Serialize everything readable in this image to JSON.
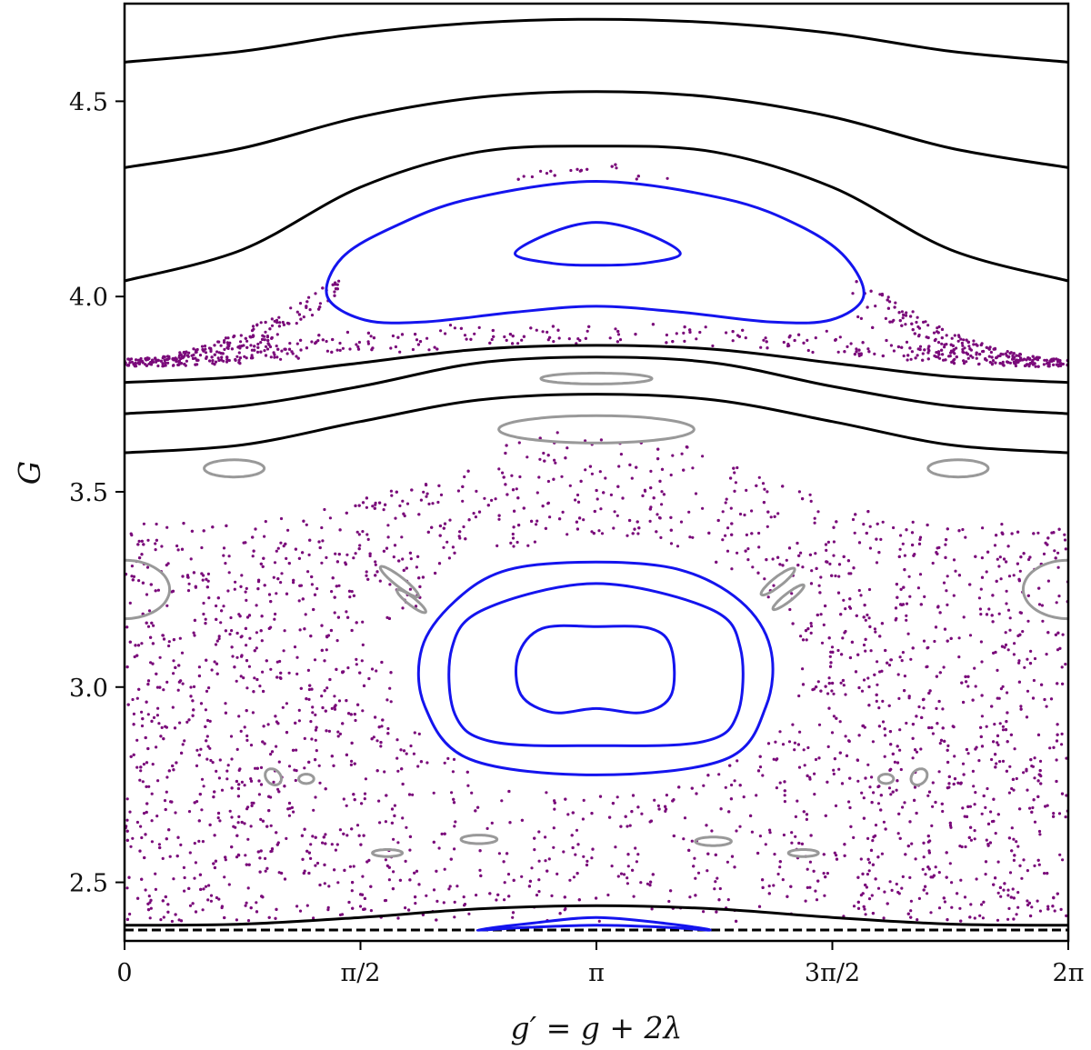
{
  "chart_data": {
    "type": "scatter",
    "title": "",
    "xlabel": "g′ = g + 2λ",
    "ylabel": "G",
    "xlim": [
      0,
      6.283185
    ],
    "ylim": [
      2.35,
      4.75
    ],
    "x_ticks": [
      {
        "value": 0,
        "label": "0"
      },
      {
        "value": 1.570796,
        "label": "π/2"
      },
      {
        "value": 3.141593,
        "label": "π"
      },
      {
        "value": 4.712389,
        "label": "3π/2"
      },
      {
        "value": 6.283185,
        "label": "2π"
      }
    ],
    "y_ticks": [
      {
        "value": 2.5,
        "label": "2.5"
      },
      {
        "value": 3.0,
        "label": "3.0"
      },
      {
        "value": 3.5,
        "label": "3.5"
      },
      {
        "value": 4.0,
        "label": "4.0"
      },
      {
        "value": 4.5,
        "label": "4.5"
      }
    ],
    "grid": false,
    "colors": {
      "regular": "#000000",
      "resonance": "#1414ee",
      "island": "#999999",
      "chaotic": "#7a0a7a"
    },
    "series": [
      {
        "kind": "curve",
        "style": "regular",
        "x": [
          0,
          0.785,
          1.571,
          2.356,
          3.142,
          3.927,
          4.712,
          5.498,
          6.283
        ],
        "y": [
          4.6,
          4.628,
          4.674,
          4.701,
          4.71,
          4.701,
          4.674,
          4.628,
          4.6
        ]
      },
      {
        "kind": "curve",
        "style": "regular",
        "x": [
          0,
          0.785,
          1.571,
          2.356,
          3.142,
          3.927,
          4.712,
          5.498,
          6.283
        ],
        "y": [
          4.33,
          4.38,
          4.46,
          4.51,
          4.525,
          4.51,
          4.46,
          4.38,
          4.33
        ]
      },
      {
        "kind": "curve",
        "style": "regular",
        "x": [
          0,
          0.785,
          1.571,
          2.356,
          3.142,
          3.927,
          4.712,
          5.498,
          6.283
        ],
        "y": [
          4.04,
          4.12,
          4.28,
          4.37,
          4.385,
          4.37,
          4.28,
          4.12,
          4.04
        ]
      },
      {
        "kind": "curve",
        "style": "regular",
        "x": [
          0,
          0.785,
          1.571,
          2.356,
          3.142,
          3.927,
          4.712,
          5.498,
          6.283
        ],
        "y": [
          3.78,
          3.795,
          3.83,
          3.865,
          3.875,
          3.865,
          3.83,
          3.795,
          3.78
        ]
      },
      {
        "kind": "curve",
        "style": "regular",
        "x": [
          0,
          0.785,
          1.571,
          2.356,
          3.142,
          3.927,
          4.712,
          5.498,
          6.283
        ],
        "y": [
          3.7,
          3.72,
          3.77,
          3.83,
          3.845,
          3.83,
          3.77,
          3.72,
          3.7
        ]
      },
      {
        "kind": "curve",
        "style": "regular",
        "x": [
          0,
          0.785,
          1.571,
          2.356,
          3.142,
          3.927,
          4.712,
          5.498,
          6.283
        ],
        "y": [
          3.6,
          3.62,
          3.68,
          3.735,
          3.75,
          3.735,
          3.68,
          3.62,
          3.6
        ]
      },
      {
        "kind": "curve",
        "style": "regular",
        "x": [
          0,
          0.785,
          1.571,
          2.356,
          3.142,
          3.927,
          4.712,
          5.498,
          6.283
        ],
        "y": [
          2.39,
          2.393,
          2.41,
          2.432,
          2.44,
          2.432,
          2.41,
          2.393,
          2.39
        ]
      },
      {
        "kind": "curve",
        "style": "regular",
        "dashed": true,
        "x": [
          0,
          6.283
        ],
        "y": [
          2.378,
          2.378
        ]
      },
      {
        "kind": "closed",
        "style": "resonance",
        "x": [
          1.35,
          1.6,
          2.0,
          2.6,
          3.14,
          3.7,
          4.3,
          4.7,
          4.92,
          4.8,
          4.5,
          4.0,
          3.14,
          2.3,
          1.8,
          1.45
        ],
        "y": [
          4.0,
          3.94,
          3.935,
          3.96,
          3.975,
          3.96,
          3.935,
          3.94,
          4.0,
          4.1,
          4.18,
          4.25,
          4.295,
          4.25,
          4.18,
          4.1
        ]
      },
      {
        "kind": "closed",
        "style": "resonance",
        "x": [
          2.6,
          2.85,
          3.14,
          3.45,
          3.7,
          3.45,
          3.14,
          2.85
        ],
        "y": [
          4.11,
          4.085,
          4.08,
          4.085,
          4.11,
          4.165,
          4.19,
          4.165
        ]
      },
      {
        "kind": "closed",
        "style": "resonance",
        "x": [
          2.0,
          2.3,
          3.14,
          4.0,
          4.27,
          4.3,
          4.1,
          3.7,
          3.14,
          2.55,
          2.2,
          1.98
        ],
        "y": [
          2.95,
          2.815,
          2.775,
          2.815,
          2.95,
          3.1,
          3.22,
          3.3,
          3.32,
          3.3,
          3.22,
          3.1
        ]
      },
      {
        "kind": "closed",
        "style": "resonance",
        "x": [
          2.2,
          2.45,
          3.14,
          3.85,
          4.08,
          4.1,
          3.9,
          3.14,
          2.4,
          2.18
        ],
        "y": [
          2.93,
          2.86,
          2.85,
          2.86,
          2.93,
          3.1,
          3.2,
          3.265,
          3.2,
          3.1
        ]
      },
      {
        "kind": "closed",
        "style": "resonance",
        "x": [
          2.64,
          2.85,
          3.14,
          3.45,
          3.64,
          3.64,
          3.5,
          3.14,
          2.78,
          2.62
        ],
        "y": [
          2.98,
          2.935,
          2.945,
          2.935,
          2.98,
          3.1,
          3.15,
          3.155,
          3.15,
          3.08
        ]
      },
      {
        "kind": "closed",
        "style": "resonance",
        "x": [
          2.35,
          2.7,
          3.14,
          3.6,
          3.9,
          3.6,
          3.14,
          2.7
        ],
        "y": [
          2.378,
          2.385,
          2.39,
          2.385,
          2.378,
          2.395,
          2.41,
          2.395
        ]
      },
      {
        "kind": "island",
        "style": "island",
        "cx": 3.141593,
        "cy": 3.79,
        "rx": 0.37,
        "ry": 0.014
      },
      {
        "kind": "island",
        "style": "island",
        "cx": 3.141593,
        "cy": 3.66,
        "rx": 0.65,
        "ry": 0.035
      },
      {
        "kind": "island",
        "style": "island",
        "cx": 0.73,
        "cy": 3.56,
        "rx": 0.2,
        "ry": 0.022
      },
      {
        "kind": "island",
        "style": "island",
        "cx": 5.55,
        "cy": 3.56,
        "rx": 0.2,
        "ry": 0.022
      },
      {
        "kind": "island",
        "style": "island",
        "cx": 0.0,
        "cy": 3.25,
        "rx": 0.3,
        "ry": 0.075
      },
      {
        "kind": "island",
        "style": "island",
        "cx": 6.283185,
        "cy": 3.25,
        "rx": 0.3,
        "ry": 0.075
      },
      {
        "kind": "island",
        "style": "island",
        "cx": 1.83,
        "cy": 3.27,
        "rx": 0.16,
        "ry": 0.012,
        "angle": -38
      },
      {
        "kind": "island",
        "style": "island",
        "cx": 1.91,
        "cy": 3.22,
        "rx": 0.12,
        "ry": 0.01,
        "angle": -38
      },
      {
        "kind": "island",
        "style": "island",
        "cx": 4.35,
        "cy": 3.27,
        "rx": 0.14,
        "ry": 0.012,
        "angle": 38
      },
      {
        "kind": "island",
        "style": "island",
        "cx": 4.42,
        "cy": 3.23,
        "rx": 0.13,
        "ry": 0.01,
        "angle": 38
      },
      {
        "kind": "island",
        "style": "island",
        "cx": 0.99,
        "cy": 2.77,
        "rx": 0.06,
        "ry": 0.018,
        "angle": -45
      },
      {
        "kind": "island",
        "style": "island",
        "cx": 1.21,
        "cy": 2.765,
        "rx": 0.05,
        "ry": 0.012
      },
      {
        "kind": "island",
        "style": "island",
        "cx": 5.07,
        "cy": 2.765,
        "rx": 0.05,
        "ry": 0.012
      },
      {
        "kind": "island",
        "style": "island",
        "cx": 5.29,
        "cy": 2.77,
        "rx": 0.06,
        "ry": 0.018,
        "angle": 45
      },
      {
        "kind": "island",
        "style": "island",
        "cx": 1.75,
        "cy": 2.575,
        "rx": 0.1,
        "ry": 0.009
      },
      {
        "kind": "island",
        "style": "island",
        "cx": 2.36,
        "cy": 2.61,
        "rx": 0.12,
        "ry": 0.011
      },
      {
        "kind": "island",
        "style": "island",
        "cx": 3.92,
        "cy": 2.605,
        "rx": 0.12,
        "ry": 0.011
      },
      {
        "kind": "island",
        "style": "island",
        "cx": 4.52,
        "cy": 2.575,
        "rx": 0.1,
        "ry": 0.009
      }
    ],
    "chaotic_regions": [
      {
        "name": "upper-chaotic-layer",
        "description_points": [
          [
            0,
            3.85
          ],
          [
            0.8,
            4.05
          ],
          [
            1.6,
            4.25
          ],
          [
            3.14,
            4.36
          ],
          [
            4.7,
            4.25
          ],
          [
            5.5,
            4.05
          ],
          [
            6.28,
            3.85
          ],
          [
            3.14,
            3.8
          ]
        ]
      },
      {
        "name": "central-chaotic-sea",
        "description_points": [
          [
            0,
            2.4
          ],
          [
            0,
            3.42
          ],
          [
            1.57,
            3.5
          ],
          [
            3.14,
            3.63
          ],
          [
            4.71,
            3.5
          ],
          [
            6.28,
            3.42
          ],
          [
            6.28,
            2.4
          ]
        ]
      }
    ]
  }
}
